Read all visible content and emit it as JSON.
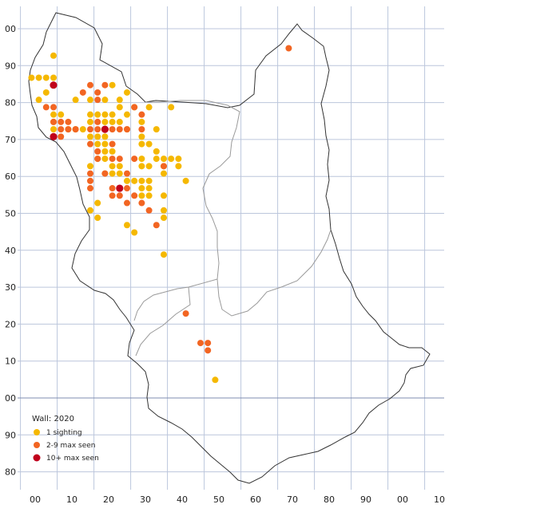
{
  "map": {
    "grid": true,
    "x_axis_labels": [
      "00",
      "10",
      "20",
      "30",
      "40",
      "50",
      "60",
      "70",
      "80",
      "90",
      "00",
      "10"
    ],
    "y_axis_labels": [
      "00",
      "90",
      "80",
      "70",
      "60",
      "50",
      "40",
      "30",
      "20",
      "10",
      "00",
      "90",
      "80"
    ],
    "colors": {
      "grid": "#bcc6dc",
      "grid_major": "#7f8db0",
      "boundary": "#333333",
      "internal_boundary": "#9a9a9a",
      "one_sighting": "#f5b800",
      "two_to_nine": "#f26522",
      "ten_plus": "#c0001b"
    }
  },
  "legend": {
    "title": "Wall:  2020",
    "items": [
      {
        "label": "1 sighting",
        "color": "#f5b800"
      },
      {
        "label": "2-9 max seen",
        "color": "#f26522"
      },
      {
        "label": "10+ max seen",
        "color": "#c0001b"
      }
    ]
  },
  "chart_data": {
    "type": "scatter",
    "series": [
      {
        "name": "1 sighting",
        "color": "#f5b800",
        "points": [
          [
            5,
            93
          ],
          [
            -1,
            87
          ],
          [
            1,
            87
          ],
          [
            3,
            87
          ],
          [
            5,
            87
          ],
          [
            1,
            81
          ],
          [
            3,
            83
          ],
          [
            11,
            81
          ],
          [
            15,
            81
          ],
          [
            19,
            81
          ],
          [
            23,
            81
          ],
          [
            21,
            85
          ],
          [
            25,
            83
          ],
          [
            5,
            77
          ],
          [
            5,
            75
          ],
          [
            5,
            73
          ],
          [
            7,
            77
          ],
          [
            9,
            73
          ],
          [
            11,
            73
          ],
          [
            13,
            73
          ],
          [
            15,
            77
          ],
          [
            15,
            75
          ],
          [
            17,
            77
          ],
          [
            19,
            77
          ],
          [
            21,
            77
          ],
          [
            19,
            75
          ],
          [
            21,
            75
          ],
          [
            23,
            75
          ],
          [
            25,
            73
          ],
          [
            17,
            71
          ],
          [
            19,
            71
          ],
          [
            15,
            71
          ],
          [
            23,
            79
          ],
          [
            25,
            77
          ],
          [
            27,
            79
          ],
          [
            31,
            79
          ],
          [
            37,
            79
          ],
          [
            29,
            75
          ],
          [
            29,
            71
          ],
          [
            29,
            69
          ],
          [
            31,
            69
          ],
          [
            33,
            73
          ],
          [
            19,
            69
          ],
          [
            21,
            67
          ],
          [
            17,
            69
          ],
          [
            19,
            67
          ],
          [
            21,
            63
          ],
          [
            19,
            61
          ],
          [
            21,
            61
          ],
          [
            15,
            63
          ],
          [
            17,
            65
          ],
          [
            19,
            65
          ],
          [
            23,
            63
          ],
          [
            23,
            61
          ],
          [
            25,
            59
          ],
          [
            27,
            59
          ],
          [
            29,
            65
          ],
          [
            29,
            63
          ],
          [
            31,
            63
          ],
          [
            33,
            67
          ],
          [
            33,
            65
          ],
          [
            35,
            65
          ],
          [
            35,
            63
          ],
          [
            35,
            61
          ],
          [
            37,
            65
          ],
          [
            39,
            65
          ],
          [
            39,
            63
          ],
          [
            41,
            59
          ],
          [
            29,
            59
          ],
          [
            31,
            59
          ],
          [
            29,
            57
          ],
          [
            31,
            57
          ],
          [
            29,
            55
          ],
          [
            31,
            55
          ],
          [
            35,
            55
          ],
          [
            17,
            53
          ],
          [
            15,
            51
          ],
          [
            17,
            49
          ],
          [
            35,
            51
          ],
          [
            35,
            49
          ],
          [
            25,
            47
          ],
          [
            27,
            45
          ],
          [
            35,
            39
          ],
          [
            49,
            5
          ]
        ]
      },
      {
        "name": "2-9 max seen",
        "color": "#f26522",
        "points": [
          [
            3,
            79
          ],
          [
            5,
            79
          ],
          [
            13,
            83
          ],
          [
            15,
            85
          ],
          [
            17,
            83
          ],
          [
            17,
            81
          ],
          [
            19,
            85
          ],
          [
            27,
            79
          ],
          [
            5,
            75
          ],
          [
            7,
            75
          ],
          [
            9,
            75
          ],
          [
            7,
            73
          ],
          [
            7,
            71
          ],
          [
            9,
            73
          ],
          [
            11,
            73
          ],
          [
            15,
            73
          ],
          [
            17,
            73
          ],
          [
            17,
            75
          ],
          [
            19,
            73
          ],
          [
            21,
            73
          ],
          [
            23,
            73
          ],
          [
            25,
            73
          ],
          [
            29,
            77
          ],
          [
            29,
            73
          ],
          [
            15,
            69
          ],
          [
            17,
            67
          ],
          [
            17,
            65
          ],
          [
            21,
            69
          ],
          [
            21,
            65
          ],
          [
            23,
            65
          ],
          [
            15,
            61
          ],
          [
            15,
            59
          ],
          [
            19,
            61
          ],
          [
            25,
            61
          ],
          [
            25,
            57
          ],
          [
            27,
            65
          ],
          [
            21,
            57
          ],
          [
            21,
            55
          ],
          [
            23,
            55
          ],
          [
            27,
            55
          ],
          [
            29,
            53
          ],
          [
            15,
            57
          ],
          [
            25,
            53
          ],
          [
            31,
            51
          ],
          [
            35,
            63
          ],
          [
            33,
            47
          ],
          [
            69,
            95
          ],
          [
            41,
            23
          ],
          [
            45,
            15
          ],
          [
            47,
            15
          ],
          [
            47,
            13
          ]
        ]
      },
      {
        "name": "10+ max seen",
        "color": "#c0001b",
        "points": [
          [
            5,
            85
          ],
          [
            19,
            73
          ],
          [
            5,
            71
          ],
          [
            23,
            57
          ]
        ]
      }
    ]
  }
}
